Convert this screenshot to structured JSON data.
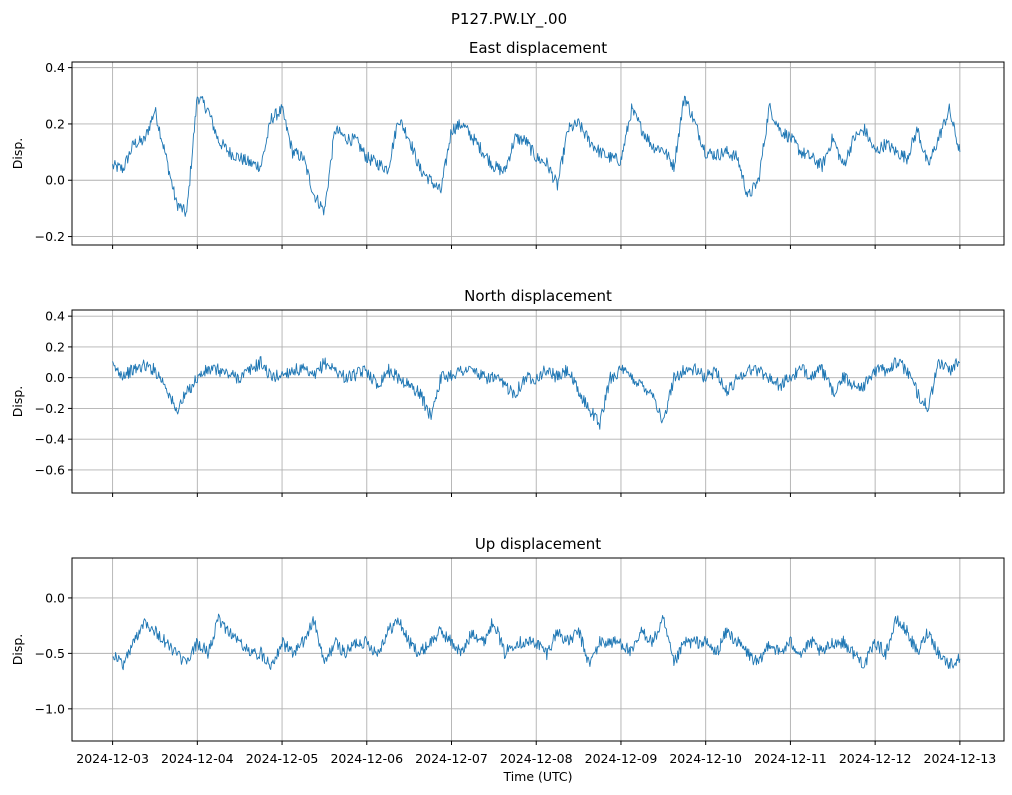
{
  "figure": {
    "suptitle": "P127.PW.LY_.00",
    "xlabel": "Time (UTC)"
  },
  "chart_data": [
    {
      "type": "line",
      "title": "East displacement",
      "ylabel": "Disp.",
      "xlim": [
        "2024-12-02T12:30",
        "2024-12-13T12:30"
      ],
      "ylim": [
        -0.23,
        0.42
      ],
      "yticks": [
        -0.2,
        0.0,
        0.2,
        0.4
      ],
      "ytick_labels": [
        "−0.2",
        "0.0",
        "0.2",
        "0.4"
      ],
      "xticks": [
        "2024-12-03",
        "2024-12-04",
        "2024-12-05",
        "2024-12-06",
        "2024-12-07",
        "2024-12-08",
        "2024-12-09",
        "2024-12-10",
        "2024-12-11",
        "2024-12-12",
        "2024-12-13"
      ],
      "xtick_labels_visible": false,
      "grid": true,
      "color": "#1f77b4",
      "series": [
        {
          "name": "",
          "x": [
            "2024-12-03T00:00",
            "2024-12-03T03:00",
            "2024-12-03T06:00",
            "2024-12-03T09:00",
            "2024-12-03T12:00",
            "2024-12-03T15:00",
            "2024-12-03T18:00",
            "2024-12-03T21:00",
            "2024-12-04T00:00",
            "2024-12-04T03:00",
            "2024-12-04T06:00",
            "2024-12-04T09:00",
            "2024-12-04T12:00",
            "2024-12-04T15:00",
            "2024-12-04T18:00",
            "2024-12-04T21:00",
            "2024-12-05T00:00",
            "2024-12-05T03:00",
            "2024-12-05T06:00",
            "2024-12-05T09:00",
            "2024-12-05T12:00",
            "2024-12-05T15:00",
            "2024-12-05T18:00",
            "2024-12-05T21:00",
            "2024-12-06T00:00",
            "2024-12-06T03:00",
            "2024-12-06T06:00",
            "2024-12-06T09:00",
            "2024-12-06T12:00",
            "2024-12-06T15:00",
            "2024-12-06T18:00",
            "2024-12-06T21:00",
            "2024-12-07T00:00",
            "2024-12-07T03:00",
            "2024-12-07T06:00",
            "2024-12-07T09:00",
            "2024-12-07T12:00",
            "2024-12-07T15:00",
            "2024-12-07T18:00",
            "2024-12-07T21:00",
            "2024-12-08T00:00",
            "2024-12-08T03:00",
            "2024-12-08T06:00",
            "2024-12-08T09:00",
            "2024-12-08T12:00",
            "2024-12-08T15:00",
            "2024-12-08T18:00",
            "2024-12-08T21:00",
            "2024-12-09T00:00",
            "2024-12-09T03:00",
            "2024-12-09T06:00",
            "2024-12-09T09:00",
            "2024-12-09T12:00",
            "2024-12-09T15:00",
            "2024-12-09T18:00",
            "2024-12-09T21:00",
            "2024-12-10T00:00",
            "2024-12-10T03:00",
            "2024-12-10T06:00",
            "2024-12-10T09:00",
            "2024-12-10T12:00",
            "2024-12-10T15:00",
            "2024-12-10T18:00",
            "2024-12-10T21:00",
            "2024-12-11T00:00",
            "2024-12-11T03:00",
            "2024-12-11T06:00",
            "2024-12-11T09:00",
            "2024-12-11T12:00",
            "2024-12-11T15:00",
            "2024-12-11T18:00",
            "2024-12-11T21:00",
            "2024-12-12T00:00",
            "2024-12-12T03:00",
            "2024-12-12T06:00",
            "2024-12-12T09:00",
            "2024-12-12T12:00",
            "2024-12-12T15:00",
            "2024-12-12T18:00",
            "2024-12-12T21:00",
            "2024-12-13T00:00"
          ],
          "y": [
            0.05,
            0.04,
            0.13,
            0.14,
            0.25,
            0.09,
            -0.08,
            -0.12,
            0.3,
            0.25,
            0.14,
            0.1,
            0.08,
            0.06,
            0.05,
            0.22,
            0.25,
            0.1,
            0.08,
            -0.05,
            -0.11,
            0.18,
            0.15,
            0.14,
            0.08,
            0.06,
            0.04,
            0.22,
            0.15,
            0.04,
            0.0,
            -0.04,
            0.18,
            0.2,
            0.15,
            0.1,
            0.05,
            0.03,
            0.15,
            0.14,
            0.08,
            0.06,
            -0.02,
            0.18,
            0.2,
            0.14,
            0.1,
            0.08,
            0.07,
            0.25,
            0.18,
            0.12,
            0.11,
            0.05,
            0.3,
            0.2,
            0.1,
            0.09,
            0.1,
            0.08,
            -0.06,
            0.0,
            0.26,
            0.18,
            0.15,
            0.1,
            0.08,
            0.05,
            0.15,
            0.05,
            0.15,
            0.18,
            0.1,
            0.13,
            0.1,
            0.08,
            0.18,
            0.05,
            0.15,
            0.25,
            0.1
          ]
        }
      ]
    },
    {
      "type": "line",
      "title": "North displacement",
      "ylabel": "Disp.",
      "xlim": [
        "2024-12-02T12:30",
        "2024-12-13T12:30"
      ],
      "ylim": [
        -0.75,
        0.44
      ],
      "yticks": [
        -0.6,
        -0.4,
        -0.2,
        0.0,
        0.2,
        0.4
      ],
      "ytick_labels": [
        "−0.6",
        "−0.4",
        "−0.2",
        "0.0",
        "0.2",
        "0.4"
      ],
      "xticks": [
        "2024-12-03",
        "2024-12-04",
        "2024-12-05",
        "2024-12-06",
        "2024-12-07",
        "2024-12-08",
        "2024-12-09",
        "2024-12-10",
        "2024-12-11",
        "2024-12-12",
        "2024-12-13"
      ],
      "xtick_labels_visible": false,
      "grid": true,
      "color": "#1f77b4",
      "series": [
        {
          "name": "",
          "x": [
            "2024-12-03T00:00",
            "2024-12-03T03:00",
            "2024-12-03T06:00",
            "2024-12-03T09:00",
            "2024-12-03T12:00",
            "2024-12-03T15:00",
            "2024-12-03T18:00",
            "2024-12-03T21:00",
            "2024-12-04T00:00",
            "2024-12-04T03:00",
            "2024-12-04T06:00",
            "2024-12-04T09:00",
            "2024-12-04T12:00",
            "2024-12-04T15:00",
            "2024-12-04T18:00",
            "2024-12-04T21:00",
            "2024-12-05T00:00",
            "2024-12-05T03:00",
            "2024-12-05T06:00",
            "2024-12-05T09:00",
            "2024-12-05T12:00",
            "2024-12-05T15:00",
            "2024-12-05T18:00",
            "2024-12-05T21:00",
            "2024-12-06T00:00",
            "2024-12-06T03:00",
            "2024-12-06T06:00",
            "2024-12-06T09:00",
            "2024-12-06T12:00",
            "2024-12-06T15:00",
            "2024-12-06T18:00",
            "2024-12-06T21:00",
            "2024-12-07T00:00",
            "2024-12-07T03:00",
            "2024-12-07T06:00",
            "2024-12-07T09:00",
            "2024-12-07T12:00",
            "2024-12-07T15:00",
            "2024-12-07T18:00",
            "2024-12-07T21:00",
            "2024-12-08T00:00",
            "2024-12-08T03:00",
            "2024-12-08T06:00",
            "2024-12-08T09:00",
            "2024-12-08T12:00",
            "2024-12-08T15:00",
            "2024-12-08T18:00",
            "2024-12-08T21:00",
            "2024-12-09T00:00",
            "2024-12-09T03:00",
            "2024-12-09T06:00",
            "2024-12-09T09:00",
            "2024-12-09T12:00",
            "2024-12-09T15:00",
            "2024-12-09T18:00",
            "2024-12-09T21:00",
            "2024-12-10T00:00",
            "2024-12-10T03:00",
            "2024-12-10T06:00",
            "2024-12-10T09:00",
            "2024-12-10T12:00",
            "2024-12-10T15:00",
            "2024-12-10T18:00",
            "2024-12-10T21:00",
            "2024-12-11T00:00",
            "2024-12-11T03:00",
            "2024-12-11T06:00",
            "2024-12-11T09:00",
            "2024-12-11T12:00",
            "2024-12-11T15:00",
            "2024-12-11T18:00",
            "2024-12-11T21:00",
            "2024-12-12T00:00",
            "2024-12-12T03:00",
            "2024-12-12T06:00",
            "2024-12-12T09:00",
            "2024-12-12T12:00",
            "2024-12-12T15:00",
            "2024-12-12T18:00",
            "2024-12-12T21:00",
            "2024-12-13T00:00"
          ],
          "y": [
            0.07,
            0.02,
            0.05,
            0.08,
            0.05,
            -0.05,
            -0.22,
            -0.1,
            0.0,
            0.05,
            0.05,
            0.02,
            0.0,
            0.05,
            0.1,
            0.0,
            0.02,
            0.05,
            0.05,
            0.0,
            0.1,
            0.05,
            0.0,
            0.02,
            0.05,
            -0.05,
            0.05,
            0.0,
            -0.05,
            -0.1,
            -0.25,
            0.0,
            0.02,
            0.05,
            0.05,
            0.0,
            0.0,
            -0.05,
            -0.1,
            0.0,
            0.0,
            0.05,
            0.0,
            0.05,
            -0.1,
            -0.2,
            -0.3,
            0.0,
            0.05,
            0.0,
            -0.05,
            -0.1,
            -0.3,
            0.0,
            0.05,
            0.05,
            0.0,
            0.05,
            -0.1,
            0.0,
            0.05,
            0.05,
            0.0,
            -0.05,
            0.0,
            0.05,
            0.02,
            0.05,
            -0.1,
            0.0,
            -0.05,
            -0.05,
            0.05,
            0.05,
            0.1,
            0.05,
            -0.1,
            -0.2,
            0.1,
            0.05,
            0.1
          ]
        }
      ]
    },
    {
      "type": "line",
      "title": "Up displacement",
      "ylabel": "Disp.",
      "xlim": [
        "2024-12-02T12:30",
        "2024-12-13T12:30"
      ],
      "ylim": [
        -1.29,
        0.36
      ],
      "yticks": [
        -1.0,
        -0.5,
        0.0
      ],
      "ytick_labels": [
        "−1.0",
        "−0.5",
        "0.0"
      ],
      "xticks": [
        "2024-12-03",
        "2024-12-04",
        "2024-12-05",
        "2024-12-06",
        "2024-12-07",
        "2024-12-08",
        "2024-12-09",
        "2024-12-10",
        "2024-12-11",
        "2024-12-12",
        "2024-12-13"
      ],
      "xtick_labels": [
        "2024-12-03",
        "2024-12-04",
        "2024-12-05",
        "2024-12-06",
        "2024-12-07",
        "2024-12-08",
        "2024-12-09",
        "2024-12-10",
        "2024-12-11",
        "2024-12-12",
        "2024-12-13"
      ],
      "xtick_labels_visible": true,
      "xlabel": "Time (UTC)",
      "grid": true,
      "color": "#1f77b4",
      "series": [
        {
          "name": "",
          "x": [
            "2024-12-03T00:00",
            "2024-12-03T03:00",
            "2024-12-03T06:00",
            "2024-12-03T09:00",
            "2024-12-03T12:00",
            "2024-12-03T15:00",
            "2024-12-03T18:00",
            "2024-12-03T21:00",
            "2024-12-04T00:00",
            "2024-12-04T03:00",
            "2024-12-04T06:00",
            "2024-12-04T09:00",
            "2024-12-04T12:00",
            "2024-12-04T15:00",
            "2024-12-04T18:00",
            "2024-12-04T21:00",
            "2024-12-05T00:00",
            "2024-12-05T03:00",
            "2024-12-05T06:00",
            "2024-12-05T09:00",
            "2024-12-05T12:00",
            "2024-12-05T15:00",
            "2024-12-05T18:00",
            "2024-12-05T21:00",
            "2024-12-06T00:00",
            "2024-12-06T03:00",
            "2024-12-06T06:00",
            "2024-12-06T09:00",
            "2024-12-06T12:00",
            "2024-12-06T15:00",
            "2024-12-06T18:00",
            "2024-12-06T21:00",
            "2024-12-07T00:00",
            "2024-12-07T03:00",
            "2024-12-07T06:00",
            "2024-12-07T09:00",
            "2024-12-07T12:00",
            "2024-12-07T15:00",
            "2024-12-07T18:00",
            "2024-12-07T21:00",
            "2024-12-08T00:00",
            "2024-12-08T03:00",
            "2024-12-08T06:00",
            "2024-12-08T09:00",
            "2024-12-08T12:00",
            "2024-12-08T15:00",
            "2024-12-08T18:00",
            "2024-12-08T21:00",
            "2024-12-09T00:00",
            "2024-12-09T03:00",
            "2024-12-09T06:00",
            "2024-12-09T09:00",
            "2024-12-09T12:00",
            "2024-12-09T15:00",
            "2024-12-09T18:00",
            "2024-12-09T21:00",
            "2024-12-10T00:00",
            "2024-12-10T03:00",
            "2024-12-10T06:00",
            "2024-12-10T09:00",
            "2024-12-10T12:00",
            "2024-12-10T15:00",
            "2024-12-10T18:00",
            "2024-12-10T21:00",
            "2024-12-11T00:00",
            "2024-12-11T03:00",
            "2024-12-11T06:00",
            "2024-12-11T09:00",
            "2024-12-11T12:00",
            "2024-12-11T15:00",
            "2024-12-11T18:00",
            "2024-12-11T21:00",
            "2024-12-12T00:00",
            "2024-12-12T03:00",
            "2024-12-12T06:00",
            "2024-12-12T09:00",
            "2024-12-12T12:00",
            "2024-12-12T15:00",
            "2024-12-12T18:00",
            "2024-12-12T21:00",
            "2024-12-13T00:00"
          ],
          "y": [
            -0.5,
            -0.6,
            -0.4,
            -0.2,
            -0.3,
            -0.4,
            -0.5,
            -0.6,
            -0.4,
            -0.5,
            -0.2,
            -0.3,
            -0.4,
            -0.5,
            -0.5,
            -0.6,
            -0.4,
            -0.5,
            -0.4,
            -0.2,
            -0.6,
            -0.4,
            -0.5,
            -0.4,
            -0.4,
            -0.5,
            -0.3,
            -0.2,
            -0.4,
            -0.5,
            -0.4,
            -0.3,
            -0.4,
            -0.5,
            -0.3,
            -0.4,
            -0.2,
            -0.5,
            -0.4,
            -0.4,
            -0.4,
            -0.5,
            -0.3,
            -0.4,
            -0.3,
            -0.6,
            -0.4,
            -0.4,
            -0.4,
            -0.5,
            -0.3,
            -0.4,
            -0.2,
            -0.6,
            -0.4,
            -0.4,
            -0.4,
            -0.5,
            -0.3,
            -0.4,
            -0.5,
            -0.6,
            -0.4,
            -0.5,
            -0.4,
            -0.5,
            -0.4,
            -0.5,
            -0.4,
            -0.4,
            -0.5,
            -0.6,
            -0.4,
            -0.5,
            -0.2,
            -0.3,
            -0.5,
            -0.3,
            -0.5,
            -0.6,
            -0.55
          ]
        }
      ]
    }
  ]
}
